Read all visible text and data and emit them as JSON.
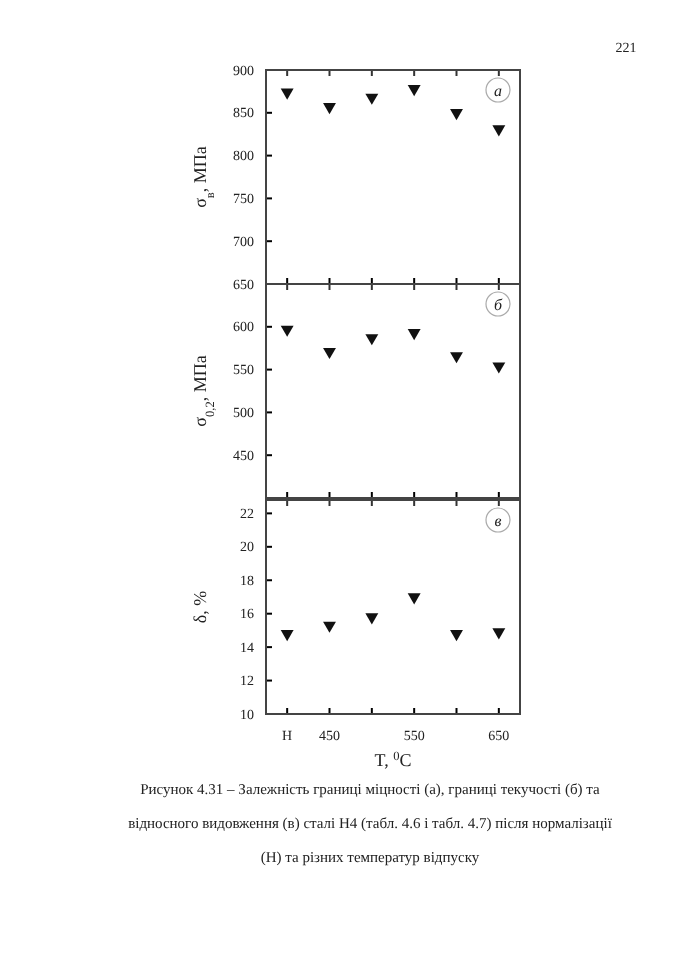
{
  "chart_data": [
    {
      "type": "scatter",
      "ylabel": "σ$_{в}$, МПа",
      "x": [
        400,
        450,
        500,
        550,
        600,
        650
      ],
      "values": [
        874,
        857,
        868,
        878,
        850,
        831
      ],
      "color": "#111111",
      "marker": "triangle",
      "xlim": [
        375,
        675
      ],
      "xticks": [
        400,
        450,
        500,
        550,
        600,
        650
      ],
      "ylim": [
        650,
        900
      ],
      "yticks": [
        {
          "value": 650,
          "label": null
        },
        700,
        750,
        800,
        850,
        900
      ],
      "tick_labels": "y",
      "annotations": [
        "а",
        "221"
      ]
    },
    {
      "type": "scatter",
      "ylabel": "σ$_{0,2}$, МПа",
      "x": [
        400,
        450,
        500,
        550,
        600,
        650
      ],
      "values": [
        597,
        571,
        587,
        593,
        566,
        554
      ],
      "color": "#111111",
      "marker": "triangle",
      "xlim": [
        375,
        675
      ],
      "xticks": [
        400,
        450,
        500,
        550,
        600,
        650
      ],
      "ylim": [
        400,
        650
      ],
      "yticks": [
        450,
        500,
        550,
        600,
        650
      ],
      "tick_labels": "y",
      "annotations": [
        "б"
      ]
    },
    {
      "type": "scatter",
      "xlabel": "T, $^{0}$C",
      "ylabel": "δ, %",
      "x": [
        400,
        450,
        500,
        550,
        600,
        650
      ],
      "values": [
        14.8,
        15.3,
        15.8,
        17.0,
        14.8,
        14.9
      ],
      "color": "#111111",
      "marker": "triangle",
      "xlim": [
        375,
        675
      ],
      "xticks": [
        {
          "value": 400,
          "label": "Н"
        },
        450,
        {
          "value": 500,
          "label": null
        },
        550,
        {
          "value": 600,
          "label": null
        },
        650
      ],
      "ylim": [
        10,
        22.8
      ],
      "yticks": [
        10,
        12,
        14,
        16,
        18,
        20,
        22
      ],
      "annotations": [
        "в",
        "Рисунок 4.31 – Залежність границі міцності (а), границі текучості (б) та відносного видовження (в) сталі Н4 (табл. 4.6 і табл. 4.7) після нормалізації (Н) та різних температур відпуску"
      ]
    }
  ]
}
